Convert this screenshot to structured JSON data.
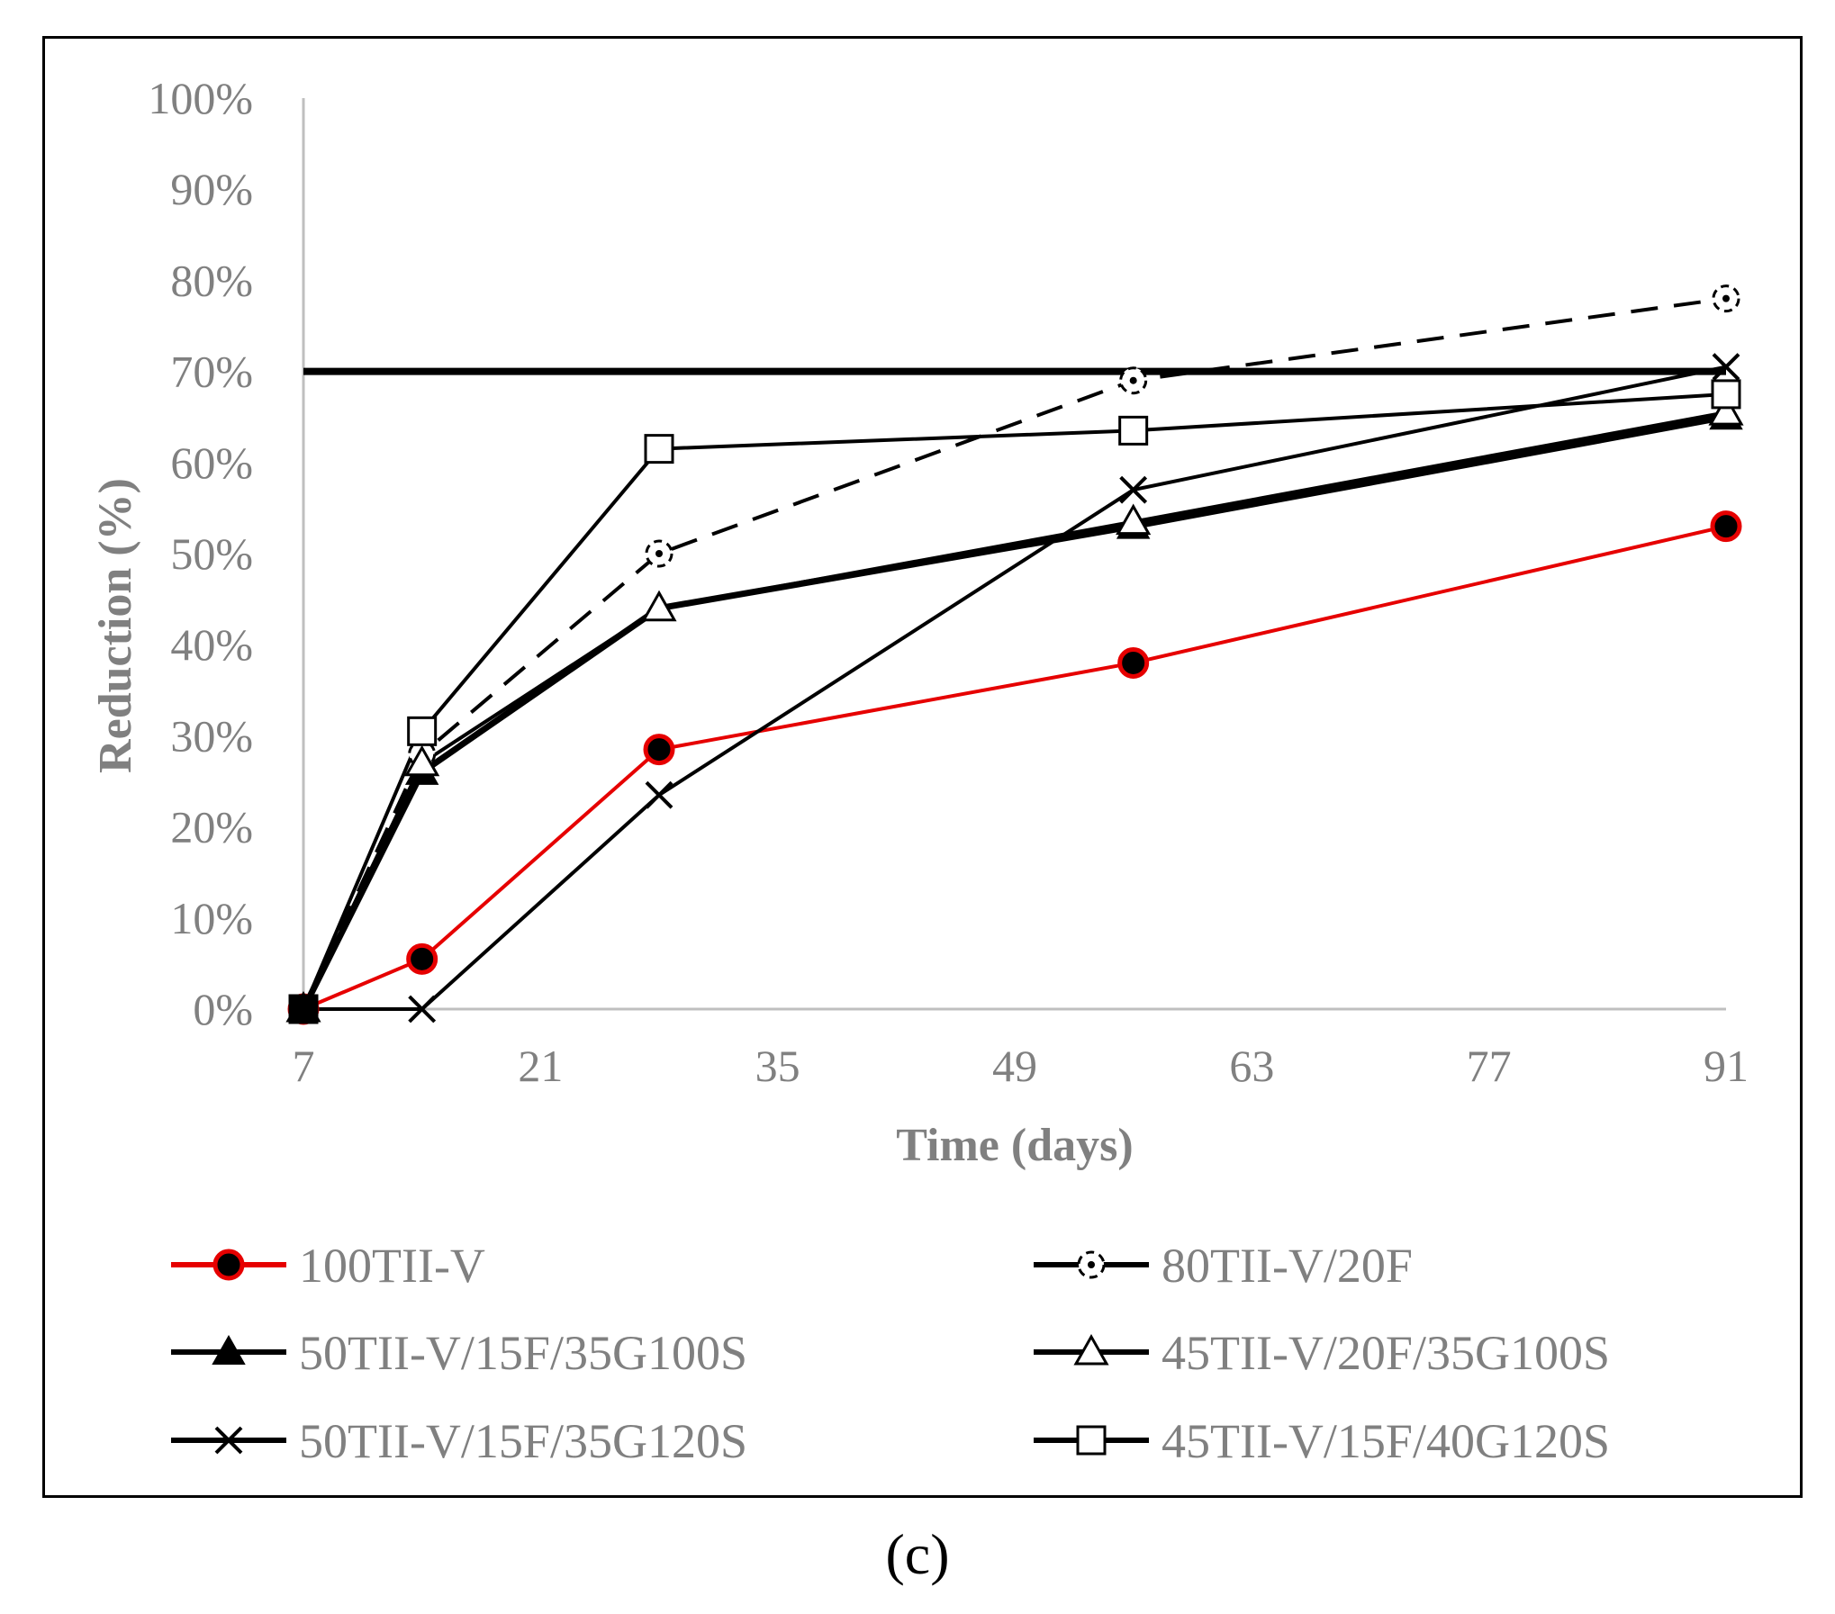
{
  "chart_data": {
    "type": "line",
    "xlabel": "Time (days)",
    "ylabel": "Reduction (%)",
    "xlim": [
      7,
      91
    ],
    "ylim": [
      0,
      100
    ],
    "x_ticks": [
      7,
      21,
      35,
      49,
      63,
      77,
      91
    ],
    "y_ticks": [
      "0%",
      "10%",
      "20%",
      "30%",
      "40%",
      "50%",
      "60%",
      "70%",
      "80%",
      "90%",
      "100%"
    ],
    "x_tick_values": [
      7,
      21,
      35,
      49,
      63,
      77,
      91
    ],
    "y_tick_values": [
      0,
      10,
      20,
      30,
      40,
      50,
      60,
      70,
      80,
      90,
      100
    ],
    "reference_line": {
      "y": 70,
      "color": "#000000"
    },
    "legend_position": "bottom",
    "series": [
      {
        "name": "100TII-V",
        "x": [
          7,
          14,
          28,
          56,
          91
        ],
        "values": [
          0,
          5.5,
          28.5,
          38,
          53
        ],
        "color": "#e60000",
        "marker": "filled-circle",
        "dash": "solid"
      },
      {
        "name": "80TII-V/20F",
        "x": [
          7,
          14,
          28,
          56,
          91
        ],
        "values": [
          0,
          28,
          50,
          69,
          78
        ],
        "color": "#000000",
        "marker": "dotted-circle",
        "dash": "dashed"
      },
      {
        "name": "50TII-V/15F/35G100S",
        "x": [
          7,
          14,
          28,
          56,
          91
        ],
        "values": [
          0,
          26,
          44,
          53,
          65
        ],
        "color": "#000000",
        "marker": "filled-triangle",
        "dash": "solid"
      },
      {
        "name": "45TII-V/20F/35G100S",
        "x": [
          7,
          14,
          28,
          56,
          91
        ],
        "values": [
          0,
          27,
          44,
          53.5,
          65.5
        ],
        "color": "#000000",
        "marker": "open-triangle",
        "dash": "solid"
      },
      {
        "name": "50TII-V/15F/35G120S",
        "x": [
          7,
          14,
          28,
          56,
          91
        ],
        "values": [
          0,
          0,
          23.5,
          57,
          70.5
        ],
        "color": "#000000",
        "marker": "x",
        "dash": "solid"
      },
      {
        "name": "45TII-V/15F/40G120S",
        "x": [
          7,
          14,
          28,
          56,
          91
        ],
        "values": [
          0,
          30.5,
          61.5,
          63.5,
          67.5
        ],
        "color": "#000000",
        "marker": "open-square",
        "dash": "solid"
      }
    ]
  },
  "panel_label": "(c)"
}
